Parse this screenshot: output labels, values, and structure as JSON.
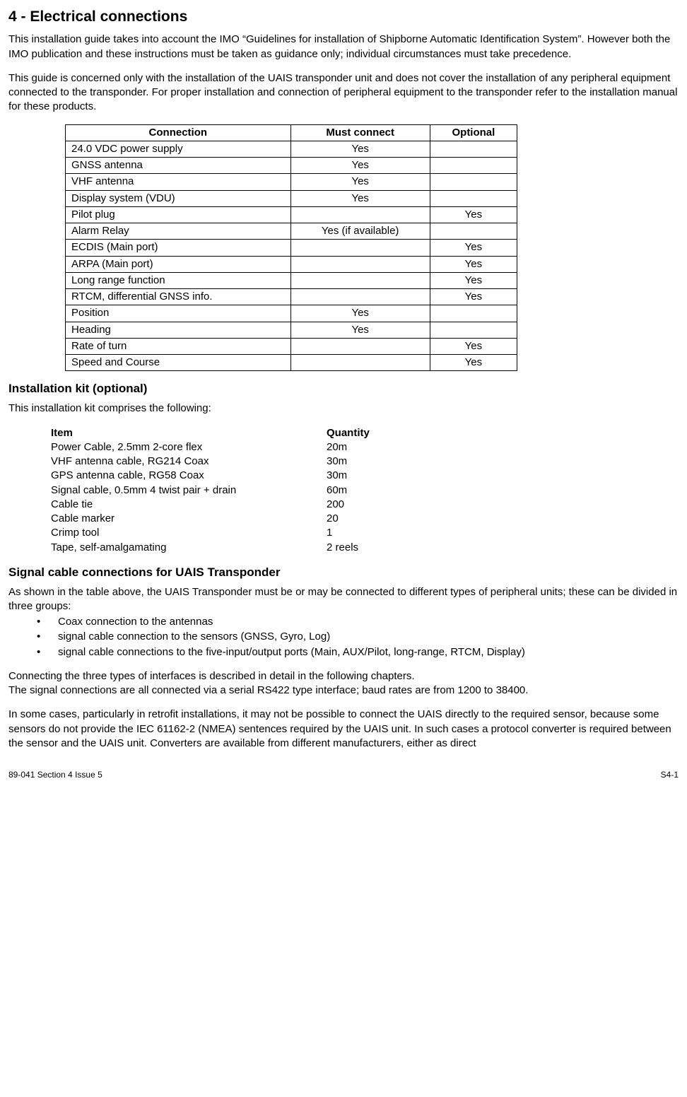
{
  "title": "4 - Electrical connections",
  "intro_p1": "This installation guide takes into account the IMO “Guidelines for installation of Shipborne Automatic Identification System”. However both the IMO publication and these instructions must be taken as guidance only; individual circumstances must take precedence.",
  "intro_p2": "This guide is concerned only with the installation of the UAIS transponder unit and does not cover the installation of any peripheral equipment connected to the transponder. For proper installation and connection of peripheral equipment to the transponder refer to the installation manual for these products.",
  "conn_table": {
    "headers": [
      "Connection",
      "Must connect",
      "Optional"
    ],
    "rows": [
      [
        "24.0 VDC power supply",
        "Yes",
        ""
      ],
      [
        "GNSS antenna",
        "Yes",
        ""
      ],
      [
        "VHF antenna",
        "Yes",
        ""
      ],
      [
        "Display system (VDU)",
        "Yes",
        ""
      ],
      [
        "Pilot plug",
        "",
        "Yes"
      ],
      [
        "Alarm Relay",
        "Yes (if available)",
        ""
      ],
      [
        "ECDIS (Main port)",
        "",
        "Yes"
      ],
      [
        "ARPA (Main port)",
        "",
        "Yes"
      ],
      [
        "Long range function",
        "",
        "Yes"
      ],
      [
        "RTCM, differential GNSS info.",
        "",
        "Yes"
      ],
      [
        "Position",
        "Yes",
        ""
      ],
      [
        "Heading",
        "Yes",
        ""
      ],
      [
        "Rate of turn",
        "",
        "Yes"
      ],
      [
        "Speed and Course",
        "",
        "Yes"
      ]
    ]
  },
  "kit_heading": "Installation kit (optional)",
  "kit_intro": "This installation kit comprises the following:",
  "kit_table": {
    "headers": [
      "Item",
      "Quantity"
    ],
    "rows": [
      [
        "Power Cable, 2.5mm 2-core flex",
        "20m"
      ],
      [
        "VHF antenna cable, RG214 Coax",
        "30m"
      ],
      [
        "GPS antenna cable, RG58 Coax",
        "30m"
      ],
      [
        "Signal cable, 0.5mm 4 twist pair + drain",
        "60m"
      ],
      [
        "Cable tie",
        "200"
      ],
      [
        "Cable marker",
        "20"
      ],
      [
        "Crimp tool",
        "1"
      ],
      [
        "Tape, self-amalgamating",
        "2 reels"
      ]
    ]
  },
  "signal_heading": "Signal cable connections for UAIS Transponder",
  "signal_intro": "As shown in the table above, the UAIS Transponder must be or may be connected to different types of peripheral units; these can be divided in three groups:",
  "signal_bullets": [
    "Coax connection to the antennas",
    "signal cable connection to the sensors (GNSS, Gyro, Log)",
    "signal cable connections to the five-input/output ports (Main, AUX/Pilot, long-range, RTCM, Display)"
  ],
  "signal_p2": "Connecting the three types of interfaces is described in detail in the following chapters.\nThe signal connections are all connected via a serial RS422 type interface; baud rates are from 1200 to 38400.",
  "signal_p3": "In some cases, particularly in retrofit installations, it may not be possible to connect the UAIS directly to the required sensor, because some sensors do not provide the IEC 61162-2 (NMEA) sentences required by the UAIS unit. In such cases a protocol converter is required between the sensor and the UAIS unit. Converters are available from different manufacturers, either as direct",
  "footer_left": "89-041 Section 4  Issue 5",
  "footer_right": "S4-1"
}
